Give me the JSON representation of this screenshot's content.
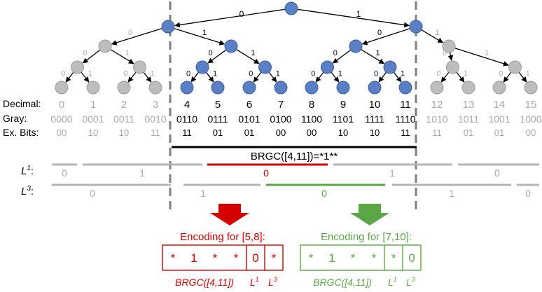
{
  "row_labels": {
    "decimal": "Decimal:",
    "gray": "Gray:",
    "ex_bits": "Ex. Bits:",
    "l1_base": "L",
    "l1_sup": "1",
    "l3_base": "L",
    "l3_sup": "3",
    "colon": ":"
  },
  "root_edges": {
    "left": "0",
    "right": "1"
  },
  "columns": [
    {
      "decimal": "0",
      "gray": "0000",
      "ex_bits": "00",
      "active": false
    },
    {
      "decimal": "1",
      "gray": "0001",
      "ex_bits": "10",
      "active": false
    },
    {
      "decimal": "2",
      "gray": "0011",
      "ex_bits": "10",
      "active": false
    },
    {
      "decimal": "3",
      "gray": "0010",
      "ex_bits": "11",
      "active": false
    },
    {
      "decimal": "4",
      "gray": "0110",
      "ex_bits": "11",
      "active": true
    },
    {
      "decimal": "5",
      "gray": "0111",
      "ex_bits": "01",
      "active": true
    },
    {
      "decimal": "6",
      "gray": "0101",
      "ex_bits": "01",
      "active": true
    },
    {
      "decimal": "7",
      "gray": "0100",
      "ex_bits": "00",
      "active": true
    },
    {
      "decimal": "8",
      "gray": "1100",
      "ex_bits": "00",
      "active": true
    },
    {
      "decimal": "9",
      "gray": "1101",
      "ex_bits": "10",
      "active": true
    },
    {
      "decimal": "10",
      "gray": "1111",
      "ex_bits": "10",
      "active": true
    },
    {
      "decimal": "11",
      "gray": "1110",
      "ex_bits": "11",
      "active": true
    },
    {
      "decimal": "12",
      "gray": "1010",
      "ex_bits": "11",
      "active": false
    },
    {
      "decimal": "13",
      "gray": "1011",
      "ex_bits": "01",
      "active": false
    },
    {
      "decimal": "14",
      "gray": "1001",
      "ex_bits": "01",
      "active": false
    },
    {
      "decimal": "15",
      "gray": "1000",
      "ex_bits": "00",
      "active": false
    }
  ],
  "brgc_label": "BRGC([4,11])=*1**",
  "l1_segments": [
    {
      "label": "0",
      "color": "gray"
    },
    {
      "label": "1",
      "color": "gray"
    },
    {
      "label": "0",
      "color": "red"
    },
    {
      "label": "1",
      "color": "gray"
    },
    {
      "label": "0",
      "color": "gray"
    }
  ],
  "l3_segments": [
    {
      "label": "0",
      "color": "gray"
    },
    {
      "label": "1",
      "color": "gray"
    },
    {
      "label": "0",
      "color": "green"
    },
    {
      "label": "1",
      "color": "gray"
    },
    {
      "label": "0",
      "color": "gray"
    }
  ],
  "encodings": [
    {
      "title": "Encoding for [5,8]:",
      "color": "#d40000",
      "cells": [
        "*",
        "1",
        "*",
        "*",
        "0",
        "*"
      ],
      "captions": {
        "brgc": "BRGC([4,11])",
        "l1_base": "L",
        "l1_sup": "1",
        "l3_base": "L",
        "l3_sup": "3"
      }
    },
    {
      "title": "Encoding for [7,10]:",
      "color": "#5aa646",
      "cells": [
        "*",
        "1",
        "*",
        "*",
        "*",
        "0"
      ],
      "captions": {
        "brgc": "BRGC([4,11])",
        "l1_base": "L",
        "l1_sup": "1",
        "l3_base": "L",
        "l3_sup": "3"
      }
    }
  ],
  "colors": {
    "active_node": "#5b7fc4",
    "inactive_node": "#bdbdbd",
    "red": "#d40000",
    "green": "#5aa646",
    "gray_line": "#b5b5b5",
    "dash": "#808080",
    "inactive_text": "#a8a8a8"
  }
}
